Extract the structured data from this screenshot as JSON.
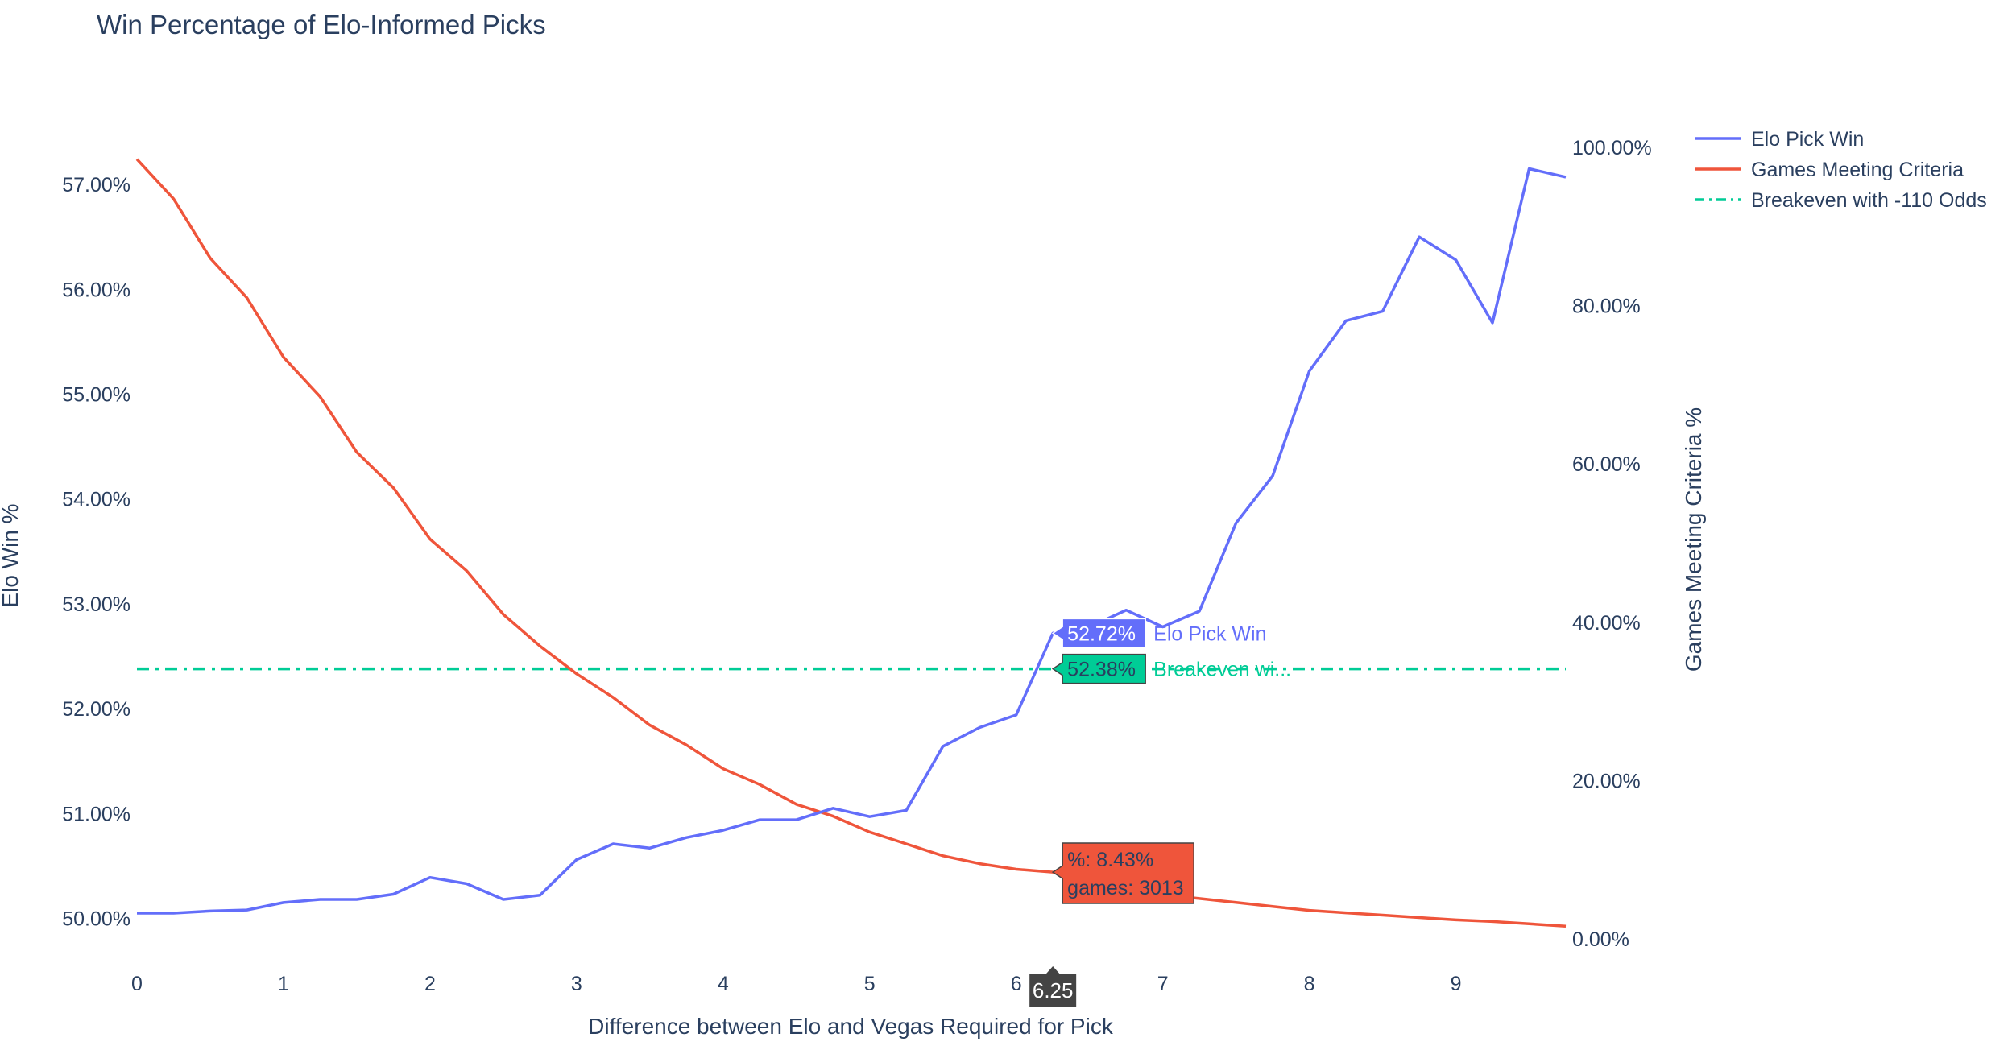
{
  "chart_data": {
    "type": "line",
    "title": "Win Percentage of Elo-Informed Picks",
    "xlabel": "Difference between Elo and Vegas Required for Pick",
    "ylabel": "Elo Win %",
    "y2label": "Games Meeting Criteria %",
    "xlim": [
      0,
      9.75
    ],
    "ylim": [
      49.85,
      57.3
    ],
    "y2lim": [
      0,
      100
    ],
    "x_ticks": [
      0,
      1,
      2,
      3,
      4,
      5,
      6,
      7,
      8,
      9
    ],
    "x_tick_labels": [
      "0",
      "1",
      "2",
      "3",
      "4",
      "5",
      "6",
      "7",
      "8",
      "9"
    ],
    "y_ticks": [
      50,
      51,
      52,
      53,
      54,
      55,
      56,
      57
    ],
    "y_tick_labels": [
      "50.00%",
      "51.00%",
      "52.00%",
      "53.00%",
      "54.00%",
      "55.00%",
      "56.00%",
      "57.00%"
    ],
    "y2_ticks": [
      0,
      20,
      40,
      60,
      80,
      100
    ],
    "y2_tick_labels": [
      "0.00%",
      "20.00%",
      "40.00%",
      "60.00%",
      "80.00%",
      "100.00%"
    ],
    "grid": false,
    "legend_position": "top-right",
    "x": [
      0,
      0.25,
      0.5,
      0.75,
      1,
      1.25,
      1.5,
      1.75,
      2,
      2.25,
      2.5,
      2.75,
      3,
      3.25,
      3.5,
      3.75,
      4,
      4.25,
      4.5,
      4.75,
      5,
      5.25,
      5.5,
      5.75,
      6,
      6.25,
      6.5,
      6.75,
      7,
      7.25,
      7.5,
      7.75,
      8,
      8.25,
      8.5,
      8.75,
      9,
      9.25,
      9.5,
      9.75
    ],
    "series": [
      {
        "name": "Elo Pick Win",
        "axis": "y",
        "color": "#636efa",
        "dash": "solid",
        "values": [
          50.05,
          50.05,
          50.07,
          50.08,
          50.15,
          50.18,
          50.18,
          50.23,
          50.39,
          50.33,
          50.18,
          50.22,
          50.56,
          50.71,
          50.67,
          50.77,
          50.84,
          50.94,
          50.94,
          51.05,
          50.97,
          51.03,
          51.64,
          51.82,
          51.94,
          52.72,
          52.78,
          52.94,
          52.78,
          52.93,
          53.77,
          54.22,
          55.22,
          55.7,
          55.79,
          56.5,
          56.28,
          55.68,
          57.15,
          57.07
        ]
      },
      {
        "name": "Games Meeting Criteria",
        "axis": "y2",
        "color": "#ef553b",
        "dash": "solid",
        "values": [
          98.5,
          93.5,
          86.0,
          81.0,
          73.5,
          68.5,
          61.5,
          57.0,
          50.5,
          46.5,
          41.0,
          37.0,
          33.5,
          30.5,
          27.0,
          24.5,
          21.5,
          19.5,
          17.0,
          15.5,
          13.5,
          12.0,
          10.5,
          9.5,
          8.8,
          8.43,
          7.0,
          6.2,
          5.6,
          5.1,
          4.6,
          4.1,
          3.6,
          3.3,
          3.0,
          2.7,
          2.4,
          2.2,
          1.9,
          1.6
        ]
      },
      {
        "name": "Breakeven with -110 Odds",
        "axis": "y",
        "color": "#00cc96",
        "dash": "dashdot",
        "values": [
          52.38,
          52.38,
          52.38,
          52.38,
          52.38,
          52.38,
          52.38,
          52.38,
          52.38,
          52.38,
          52.38,
          52.38,
          52.38,
          52.38,
          52.38,
          52.38,
          52.38,
          52.38,
          52.38,
          52.38,
          52.38,
          52.38,
          52.38,
          52.38,
          52.38,
          52.38,
          52.38,
          52.38,
          52.38,
          52.38,
          52.38,
          52.38,
          52.38,
          52.38,
          52.38,
          52.38,
          52.38,
          52.38,
          52.38,
          52.38
        ]
      }
    ],
    "hover": {
      "x_label": "6.25",
      "elo_value": "52.72%",
      "elo_name": "Elo Pick Win",
      "breakeven_value": "52.38%",
      "breakeven_name": "Breakeven wi...",
      "games_line1": "%: 8.43%",
      "games_line2": "games: 3013"
    }
  }
}
